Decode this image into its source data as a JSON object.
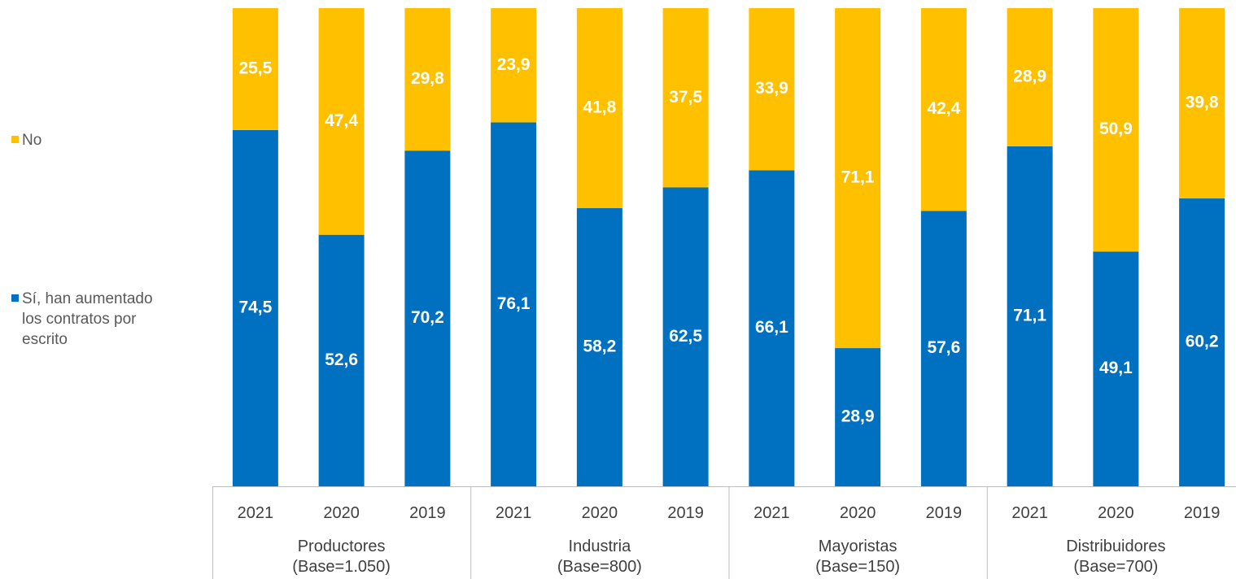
{
  "chart_data": {
    "type": "bar",
    "stacked": true,
    "normalized": true,
    "title": "",
    "xlabel": "",
    "ylabel": "",
    "ylim": [
      0,
      100
    ],
    "grid": false,
    "legend_position": "left",
    "groups": [
      {
        "name": "Productores",
        "base": "(Base=1.050)",
        "categories": [
          "2021",
          "2020",
          "2019"
        ]
      },
      {
        "name": "Industria",
        "base": "(Base=800)",
        "categories": [
          "2021",
          "2020",
          "2019"
        ]
      },
      {
        "name": "Mayoristas",
        "base": "(Base=150)",
        "categories": [
          "2021",
          "2020",
          "2019"
        ]
      },
      {
        "name": "Distribuidores",
        "base": "(Base=700)",
        "categories": [
          "2021",
          "2020",
          "2019"
        ]
      }
    ],
    "categories": [
      "2021",
      "2020",
      "2019",
      "2021",
      "2020",
      "2019",
      "2021",
      "2020",
      "2019",
      "2021",
      "2020",
      "2019"
    ],
    "series": [
      {
        "name": "Sí, han aumentado los contratos por escrito",
        "color": "#0070C0",
        "values": [
          74.5,
          52.6,
          70.2,
          76.1,
          58.2,
          62.5,
          66.1,
          28.9,
          57.6,
          71.1,
          49.1,
          60.2
        ],
        "labels": [
          "74,5",
          "52,6",
          "70,2",
          "76,1",
          "58,2",
          "62,5",
          "66,1",
          "28,9",
          "57,6",
          "71,1",
          "49,1",
          "60,2"
        ]
      },
      {
        "name": "No",
        "color": "#FFC000",
        "values": [
          25.5,
          47.4,
          29.8,
          23.9,
          41.8,
          37.5,
          33.9,
          71.1,
          42.4,
          28.9,
          50.9,
          39.8
        ],
        "labels": [
          "25,5",
          "47,4",
          "29,8",
          "23,9",
          "41,8",
          "37,5",
          "33,9",
          "71,1",
          "42,4",
          "28,9",
          "50,9",
          "39,8"
        ]
      }
    ]
  },
  "legend": {
    "no": "No",
    "si_line1": "Sí, han aumentado",
    "si_line2": "los contratos por",
    "si_line3": "escrito"
  }
}
